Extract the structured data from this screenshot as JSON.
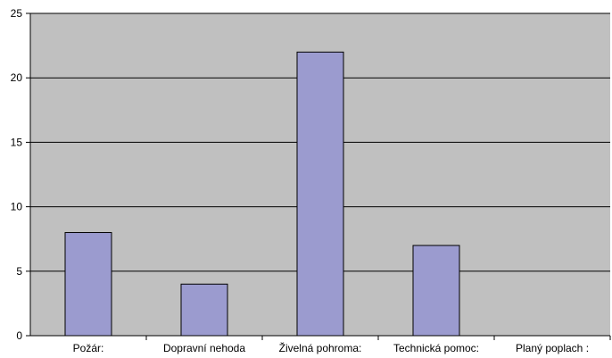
{
  "chart_data": {
    "type": "bar",
    "categories": [
      "Požár:",
      "Dopravní nehoda",
      "Živelná pohroma:",
      "Technická pomoc:",
      "Planý poplach :"
    ],
    "values": [
      8,
      4,
      22,
      7,
      0
    ],
    "yticks": [
      "0",
      "5",
      "10",
      "15",
      "20",
      "25"
    ],
    "ylim": [
      0,
      25
    ],
    "grid": true,
    "title": "",
    "xlabel": "",
    "ylabel": "",
    "colors": {
      "plot_background": "#c0c0c0",
      "bar_fill": "#9b9bcf",
      "bar_stroke": "#000000",
      "grid": "#000000",
      "axis": "#000000"
    }
  }
}
